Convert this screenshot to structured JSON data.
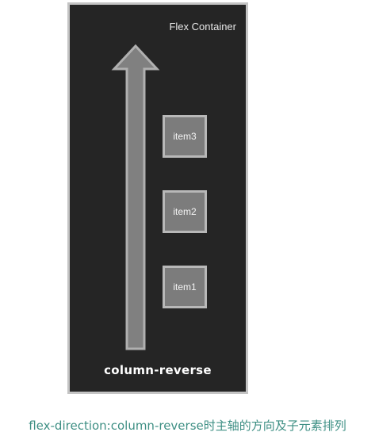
{
  "diagram": {
    "container_title": "Flex Container",
    "axis_label": "column-reverse",
    "items": [
      "item3",
      "item2",
      "item1"
    ],
    "arrow_direction": "up",
    "colors": {
      "container_bg": "#252525",
      "container_border": "#c4c4c4",
      "item_bg": "#7c7c7c",
      "item_border": "#b8b8b8",
      "arrow_fill": "#808080",
      "arrow_stroke": "#b0b0b0",
      "caption": "#3e8f84"
    }
  },
  "caption": "flex-direction:column-reverse时主轴的方向及子元素排列"
}
